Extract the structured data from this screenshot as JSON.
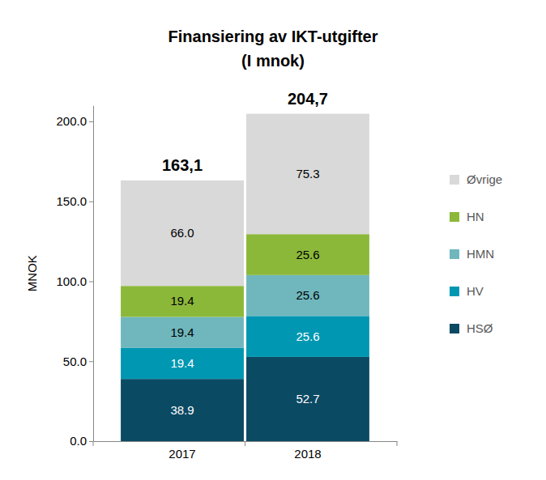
{
  "chart_data": {
    "type": "bar",
    "stacked": true,
    "data_labels": true,
    "legend": "right",
    "grid": false,
    "title": "Finansiering av IKT-utgifter",
    "subtitle": "(I mnok)",
    "y_label": "MNOK",
    "categories": [
      "2017",
      "2018"
    ],
    "series": [
      {
        "name": "HSØ",
        "color": "#0b4a63",
        "values": [
          38.9,
          52.7
        ],
        "value_labels": [
          "38.9",
          "52.7"
        ]
      },
      {
        "name": "HV",
        "color": "#0097b2",
        "values": [
          19.4,
          25.6
        ],
        "value_labels": [
          "19.4",
          "25.6"
        ]
      },
      {
        "name": "HMN",
        "color": "#6fb7bd",
        "values": [
          19.4,
          25.6
        ],
        "value_labels": [
          "19.4",
          "25.6"
        ]
      },
      {
        "name": "HN",
        "color": "#8cb83a",
        "values": [
          19.4,
          25.6
        ],
        "value_labels": [
          "19.4",
          "25.6"
        ]
      },
      {
        "name": "Øvrige",
        "color": "#d9d9d9",
        "values": [
          66.0,
          75.3
        ],
        "value_labels": [
          "66.0",
          "75.3"
        ]
      }
    ],
    "totals": {
      "values": [
        163.1,
        204.7
      ],
      "value_labels": [
        "163,1",
        "204,7"
      ]
    },
    "ylim": [
      0,
      210
    ],
    "yticks": [
      {
        "value": 0,
        "label": "0.0"
      },
      {
        "value": 50,
        "label": "50.0"
      },
      {
        "value": 100,
        "label": "100.0"
      },
      {
        "value": 150,
        "label": "150.0"
      },
      {
        "value": 200,
        "label": "200.0"
      }
    ]
  }
}
